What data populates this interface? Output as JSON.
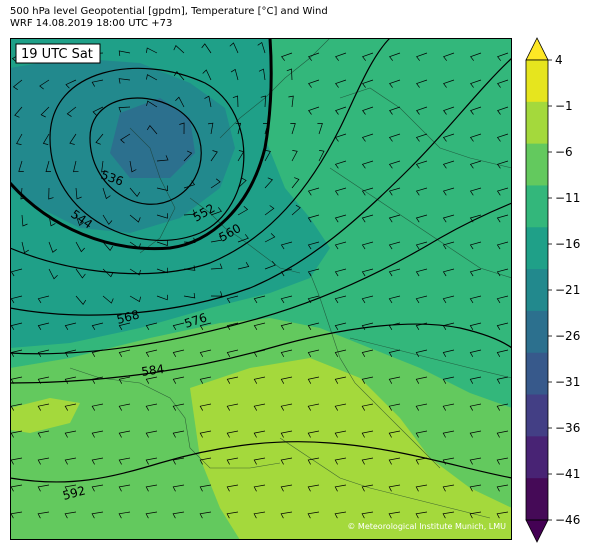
{
  "header": {
    "line1": "500 hPa level Geopotential [gpdm], Temperature [°C] and Wind",
    "line2": "WRF 14.08.2019 18:00 UTC +73"
  },
  "map": {
    "valid_label": "19 UTC Sat",
    "copyright": "© Meteorological Institute Munich, LMU",
    "contour_labels": [
      "536",
      "544",
      "552",
      "560",
      "568",
      "576",
      "584",
      "592"
    ]
  },
  "colorbar": {
    "ticks": [
      "4",
      "−1",
      "−6",
      "−11",
      "−16",
      "−21",
      "−26",
      "−31",
      "−36",
      "−41",
      "−46"
    ],
    "colors": [
      "#e6e51e",
      "#a4d93c",
      "#63c95e",
      "#33b77b",
      "#1fa088",
      "#22898d",
      "#2c708e",
      "#37598b",
      "#433f85",
      "#482374",
      "#450a57"
    ],
    "overflow_top": "#fde725",
    "overflow_bottom": "#440154"
  }
}
